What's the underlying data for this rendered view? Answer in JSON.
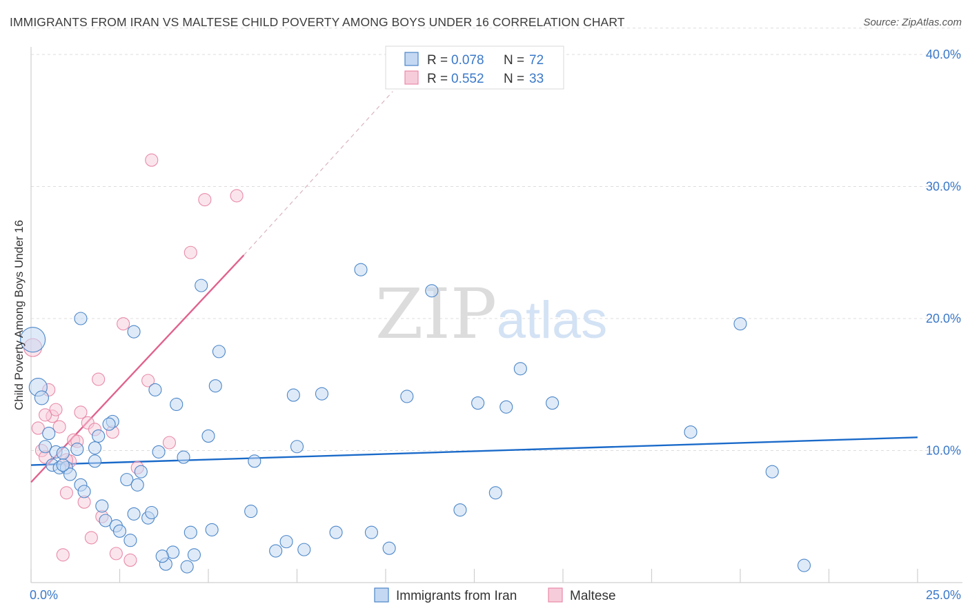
{
  "title": "IMMIGRANTS FROM IRAN VS MALTESE CHILD POVERTY AMONG BOYS UNDER 16 CORRELATION CHART",
  "source": "Source: ZipAtlas.com",
  "watermark": {
    "zip": "ZIP",
    "atlas": "atlas"
  },
  "colors": {
    "blue": "#4a86c8",
    "blue_fill": "#c4d8f3",
    "blue_line": "#1a6ac9",
    "pink": "#e88aa8",
    "pink_fill": "#f7ccda",
    "pink_line": "#e0628e",
    "axis_label": "#3a78c9"
  },
  "legend": [
    {
      "r_label": "R =",
      "r_value": "0.078",
      "n_label": "N =",
      "n_value": "72"
    },
    {
      "r_label": "R =",
      "r_value": "0.552",
      "n_label": "N =",
      "n_value": "33"
    }
  ],
  "chart_data": {
    "type": "scatter",
    "title": "IMMIGRANTS FROM IRAN VS MALTESE CHILD POVERTY AMONG BOYS UNDER 16 CORRELATION CHART",
    "xlabel": "",
    "ylabel": "Child Poverty Among Boys Under 16",
    "xlim": [
      0,
      25
    ],
    "ylim": [
      0,
      42
    ],
    "x_tick_labels": [
      {
        "value": 0,
        "label": "0.0%"
      },
      {
        "value": 25,
        "label": "25.0%"
      }
    ],
    "y_tick_labels": [
      {
        "value": 10,
        "label": "10.0%"
      },
      {
        "value": 20,
        "label": "20.0%"
      },
      {
        "value": 30,
        "label": "30.0%"
      },
      {
        "value": 40,
        "label": "40.0%"
      }
    ],
    "grid": true,
    "legend_position": "top-center",
    "series": [
      {
        "name": "Immigrants from Iran",
        "color": "#4a86c8",
        "r": 0.078,
        "n": 72,
        "trend": {
          "x": [
            0,
            25
          ],
          "y": [
            8.9,
            11.0
          ],
          "style": "solid"
        },
        "points": [
          [
            0.05,
            18.4,
            18
          ],
          [
            0.2,
            14.8,
            13
          ],
          [
            0.3,
            14.0,
            10
          ],
          [
            0.4,
            10.3,
            9
          ],
          [
            0.5,
            11.3,
            9
          ],
          [
            0.6,
            8.9,
            9
          ],
          [
            0.7,
            9.9,
            9
          ],
          [
            0.8,
            8.7,
            9
          ],
          [
            0.9,
            9.8,
            9
          ],
          [
            1.0,
            8.7,
            9
          ],
          [
            1.1,
            8.2,
            9
          ],
          [
            1.3,
            10.1,
            9
          ],
          [
            1.4,
            7.4,
            9
          ],
          [
            1.5,
            6.9,
            9
          ],
          [
            1.8,
            9.2,
            9
          ],
          [
            1.9,
            11.1,
            9
          ],
          [
            2.0,
            5.8,
            9
          ],
          [
            2.1,
            4.7,
            9
          ],
          [
            1.8,
            10.2,
            9
          ],
          [
            2.3,
            12.2,
            9
          ],
          [
            2.4,
            4.3,
            9
          ],
          [
            2.5,
            3.9,
            9
          ],
          [
            2.8,
            3.2,
            9
          ],
          [
            2.7,
            7.8,
            9
          ],
          [
            2.9,
            5.2,
            9
          ],
          [
            3.0,
            7.4,
            9
          ],
          [
            3.3,
            4.9,
            9
          ],
          [
            3.4,
            5.3,
            9
          ],
          [
            3.5,
            14.6,
            9
          ],
          [
            3.6,
            9.9,
            9
          ],
          [
            3.1,
            8.4,
            9
          ],
          [
            3.8,
            1.4,
            9
          ],
          [
            4.0,
            2.3,
            9
          ],
          [
            4.1,
            13.5,
            9
          ],
          [
            4.3,
            9.5,
            9
          ],
          [
            4.4,
            1.2,
            9
          ],
          [
            4.5,
            3.8,
            9
          ],
          [
            4.6,
            2.1,
            9
          ],
          [
            4.8,
            22.5,
            9
          ],
          [
            5.0,
            11.1,
            9
          ],
          [
            5.1,
            4.0,
            9
          ],
          [
            5.2,
            14.9,
            9
          ],
          [
            5.3,
            17.5,
            9
          ],
          [
            6.2,
            5.4,
            9
          ],
          [
            6.3,
            9.2,
            9
          ],
          [
            6.9,
            2.4,
            9
          ],
          [
            7.2,
            3.1,
            9
          ],
          [
            7.4,
            14.2,
            9
          ],
          [
            7.5,
            10.3,
            9
          ],
          [
            7.7,
            2.5,
            9
          ],
          [
            8.2,
            14.3,
            9
          ],
          [
            8.6,
            3.8,
            9
          ],
          [
            9.3,
            23.7,
            9
          ],
          [
            9.6,
            3.8,
            9
          ],
          [
            10.1,
            2.6,
            9
          ],
          [
            10.6,
            14.1,
            9
          ],
          [
            11.3,
            22.1,
            9
          ],
          [
            12.1,
            5.5,
            9
          ],
          [
            12.6,
            13.6,
            9
          ],
          [
            13.1,
            6.8,
            9
          ],
          [
            13.4,
            13.3,
            9
          ],
          [
            13.8,
            16.2,
            9
          ],
          [
            14.7,
            13.6,
            9
          ],
          [
            18.6,
            11.4,
            9
          ],
          [
            20.0,
            19.6,
            9
          ],
          [
            20.9,
            8.4,
            9
          ],
          [
            21.8,
            1.3,
            9
          ],
          [
            1.4,
            20.0,
            9
          ],
          [
            2.9,
            19.0,
            9
          ],
          [
            3.7,
            2.0,
            9
          ],
          [
            0.9,
            8.9,
            9
          ],
          [
            2.2,
            12.0,
            9
          ]
        ]
      },
      {
        "name": "Maltese",
        "color": "#e88aa8",
        "r": 0.552,
        "n": 33,
        "trend": {
          "x": [
            0,
            6.0
          ],
          "y": [
            7.6,
            24.8
          ],
          "style": "solid",
          "extension": {
            "x": [
              6.0,
              10.2
            ],
            "y": [
              24.8,
              37.2
            ],
            "style": "dashed"
          }
        },
        "points": [
          [
            0.05,
            17.8,
            13
          ],
          [
            0.2,
            11.7,
            9
          ],
          [
            0.3,
            10.0,
            9
          ],
          [
            0.4,
            9.5,
            9
          ],
          [
            0.5,
            14.6,
            9
          ],
          [
            0.6,
            12.6,
            9
          ],
          [
            0.7,
            13.1,
            9
          ],
          [
            0.8,
            11.8,
            9
          ],
          [
            0.9,
            2.1,
            9
          ],
          [
            1.0,
            6.8,
            9
          ],
          [
            1.1,
            9.2,
            9
          ],
          [
            1.2,
            10.8,
            9
          ],
          [
            1.3,
            10.7,
            9
          ],
          [
            1.4,
            12.9,
            9
          ],
          [
            1.5,
            6.1,
            9
          ],
          [
            1.6,
            12.1,
            9
          ],
          [
            1.7,
            3.4,
            9
          ],
          [
            1.8,
            11.6,
            9
          ],
          [
            1.9,
            15.4,
            9
          ],
          [
            2.0,
            5.0,
            9
          ],
          [
            2.3,
            11.4,
            9
          ],
          [
            2.4,
            2.2,
            9
          ],
          [
            2.6,
            19.6,
            9
          ],
          [
            2.8,
            1.7,
            9
          ],
          [
            3.0,
            8.7,
            9
          ],
          [
            3.3,
            15.3,
            9
          ],
          [
            3.4,
            32.0,
            9
          ],
          [
            3.9,
            10.6,
            9
          ],
          [
            4.5,
            25.0,
            9
          ],
          [
            4.9,
            29.0,
            9
          ],
          [
            5.8,
            29.3,
            9
          ],
          [
            0.4,
            12.7,
            9
          ],
          [
            1.0,
            9.3,
            9
          ]
        ]
      }
    ]
  },
  "bottom_legend": [
    {
      "label": "Immigrants from Iran"
    },
    {
      "label": "Maltese"
    }
  ]
}
